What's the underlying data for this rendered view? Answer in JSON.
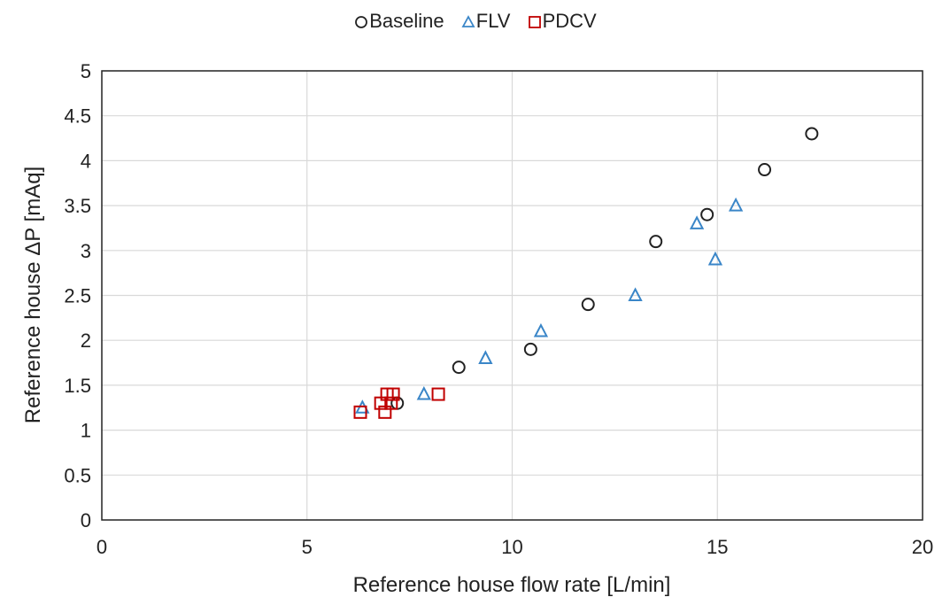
{
  "chart_data": {
    "type": "scatter",
    "xlabel": "Reference house flow rate [L/min]",
    "ylabel": "Reference house ΔP [mAq]",
    "xlim": [
      0,
      20
    ],
    "ylim": [
      0,
      5
    ],
    "xticks": [
      0,
      5,
      10,
      15,
      20
    ],
    "yticks": [
      0,
      0.5,
      1,
      1.5,
      2,
      2.5,
      3,
      3.5,
      4,
      4.5,
      5
    ],
    "xtick_labels": [
      "0",
      "5",
      "10",
      "15",
      "20"
    ],
    "ytick_labels": [
      "0",
      "0.5",
      "1",
      "1.5",
      "2",
      "2.5",
      "3",
      "3.5",
      "4",
      "4.5",
      "5"
    ],
    "grid": true,
    "legend_position": "top-center",
    "series": [
      {
        "name": "Baseline",
        "marker": "circle",
        "color": "#222222",
        "points": [
          {
            "x": 7.2,
            "y": 1.3
          },
          {
            "x": 8.7,
            "y": 1.7
          },
          {
            "x": 10.45,
            "y": 1.9
          },
          {
            "x": 11.85,
            "y": 2.4
          },
          {
            "x": 13.5,
            "y": 3.1
          },
          {
            "x": 14.75,
            "y": 3.4
          },
          {
            "x": 16.15,
            "y": 3.9
          },
          {
            "x": 17.3,
            "y": 4.3
          }
        ]
      },
      {
        "name": "FLV",
        "marker": "triangle",
        "color": "#3a86c8",
        "points": [
          {
            "x": 6.35,
            "y": 1.25
          },
          {
            "x": 7.85,
            "y": 1.4
          },
          {
            "x": 9.35,
            "y": 1.8
          },
          {
            "x": 10.7,
            "y": 2.1
          },
          {
            "x": 13.0,
            "y": 2.5
          },
          {
            "x": 14.5,
            "y": 3.3
          },
          {
            "x": 14.95,
            "y": 2.9
          },
          {
            "x": 15.45,
            "y": 3.5
          }
        ]
      },
      {
        "name": "PDCV",
        "marker": "square",
        "color": "#c00000",
        "points": [
          {
            "x": 6.3,
            "y": 1.2
          },
          {
            "x": 6.8,
            "y": 1.3
          },
          {
            "x": 6.9,
            "y": 1.2
          },
          {
            "x": 6.95,
            "y": 1.4
          },
          {
            "x": 7.1,
            "y": 1.4
          },
          {
            "x": 7.05,
            "y": 1.3
          },
          {
            "x": 8.2,
            "y": 1.4
          }
        ]
      }
    ]
  }
}
